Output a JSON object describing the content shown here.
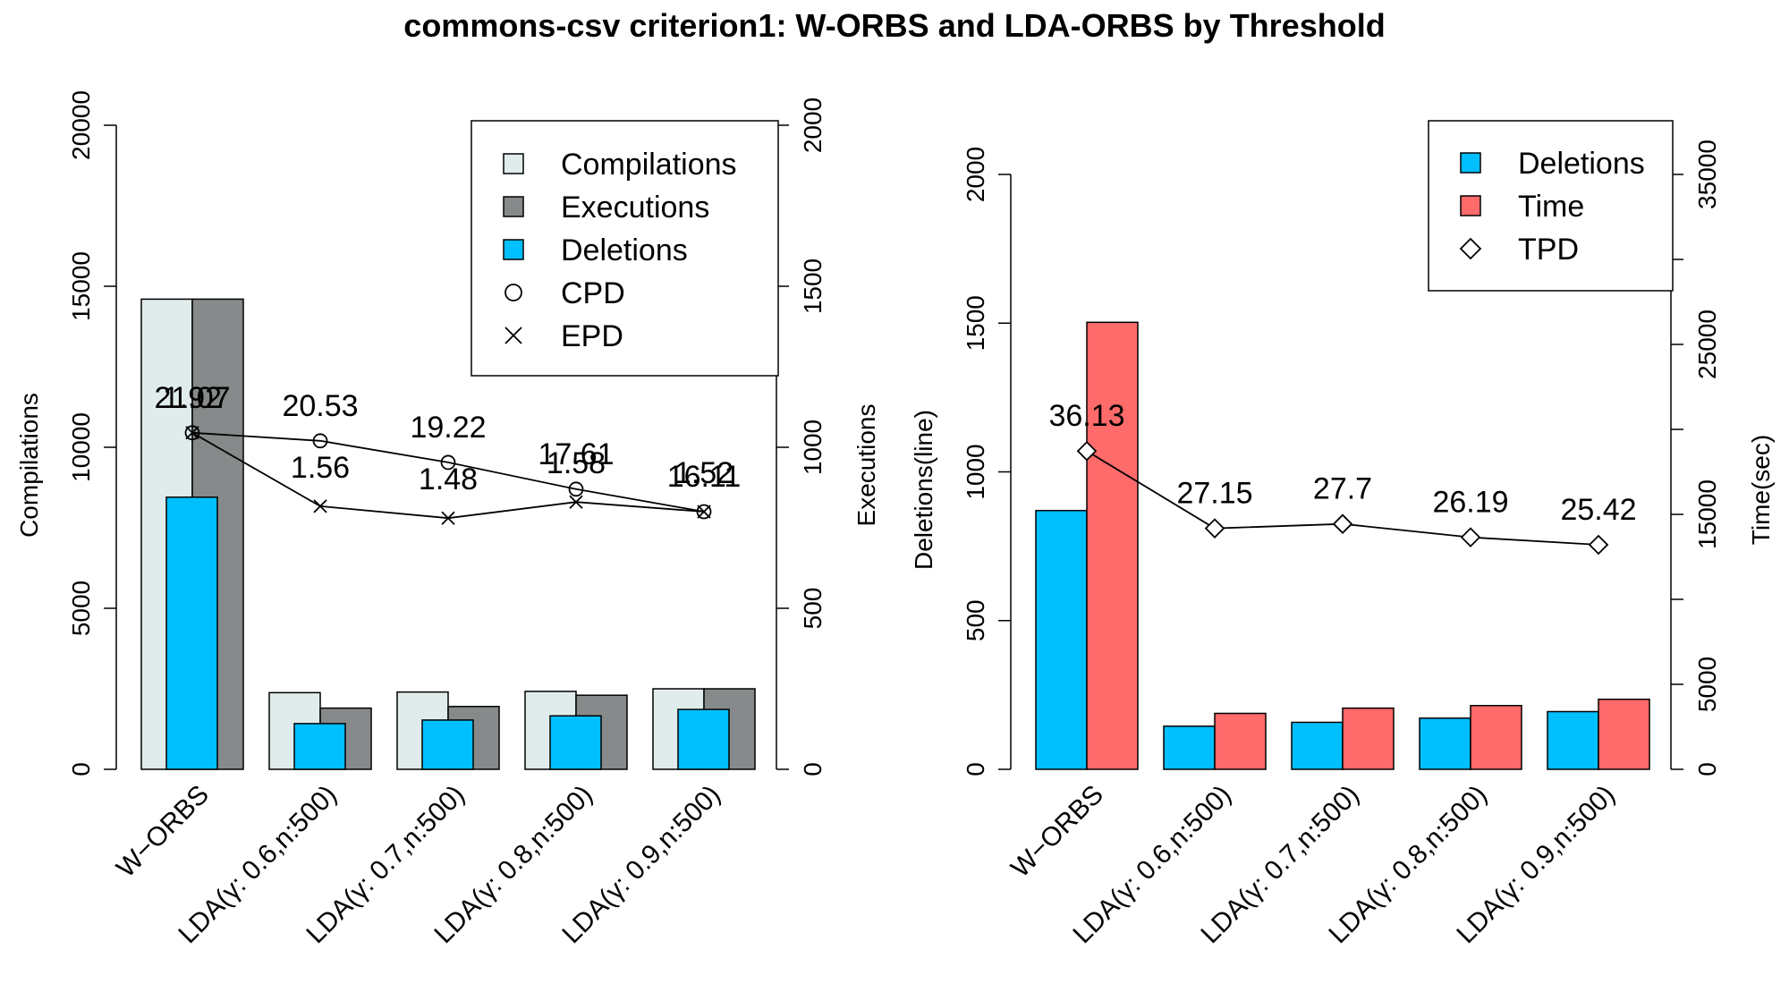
{
  "title": "commons-csv criterion1: W-ORBS and LDA-ORBS by Threshold",
  "colors": {
    "compilations": "#e0ecec",
    "executions": "#878a8a",
    "deletions": "#00bfff",
    "time": "#ff6a6a",
    "axis": "#000000"
  },
  "chart_data": [
    {
      "type": "bar",
      "panel": "left",
      "categories": [
        "W−ORBS",
        "LDA(γ: 0.6,n:500)",
        "LDA(γ: 0.7,n:500)",
        "LDA(γ: 0.8,n:500)",
        "LDA(γ: 0.9,n:500)"
      ],
      "ylabel_left": "Compilations",
      "ylabel_right": "Executions",
      "ylim_left": [
        0,
        20000
      ],
      "ylim_right": [
        0,
        2000
      ],
      "yticks_left": [
        "0",
        "5000",
        "10000",
        "15000",
        "20000"
      ],
      "yticks_right": [
        "0",
        "500",
        "1000",
        "1500",
        "2000"
      ],
      "yticks_left_values": [
        0,
        5000,
        10000,
        15000,
        20000
      ],
      "yticks_right_values": [
        0,
        500,
        1000,
        1500,
        2000
      ],
      "series": [
        {
          "name": "Compilations",
          "axis": "left",
          "values": [
            14600,
            2380,
            2400,
            2420,
            2500
          ]
        },
        {
          "name": "Executions",
          "axis": "right",
          "values": [
            1460,
            190,
            195,
            230,
            250
          ]
        },
        {
          "name": "Deletions",
          "axis": "left",
          "values": [
            8450,
            1420,
            1530,
            1660,
            1860
          ]
        }
      ],
      "lines": [
        {
          "name": "CPD",
          "marker": "circle",
          "axis": "left",
          "values": [
            10450,
            10200,
            9530,
            8700,
            8000
          ],
          "labels": [
            "21.07",
            "20.53",
            "19.22",
            "17.61",
            "16.11"
          ]
        },
        {
          "name": "EPD",
          "marker": "x",
          "axis": "left",
          "values": [
            10450,
            8170,
            7800,
            8300,
            8000
          ],
          "labels": [
            "1.92",
            "1.56",
            "1.48",
            "1.58",
            "1.52"
          ]
        }
      ],
      "legend": {
        "position": "top-right",
        "entries": [
          "Compilations",
          "Executions",
          "Deletions",
          "CPD",
          "EPD"
        ]
      }
    },
    {
      "type": "bar",
      "panel": "right",
      "categories": [
        "W−ORBS",
        "LDA(γ: 0.6,n:500)",
        "LDA(γ: 0.7,n:500)",
        "LDA(γ: 0.8,n:500)",
        "LDA(γ: 0.9,n:500)"
      ],
      "ylabel_left": "Deletions(line)",
      "ylabel_right": "Time(sec)",
      "ylim_left": [
        0,
        2000
      ],
      "ylim_right": [
        0,
        35000
      ],
      "yticks_left": [
        "0",
        "500",
        "1000",
        "1500",
        "2000"
      ],
      "yticks_right": [
        "0",
        "5000",
        "15000",
        "25000",
        "35000"
      ],
      "yticks_left_values": [
        0,
        500,
        1000,
        1500,
        2000
      ],
      "yticks_right_values": [
        0,
        5000,
        15000,
        25000,
        35000
      ],
      "extra_right_ticks": [
        10000,
        20000,
        30000
      ],
      "series": [
        {
          "name": "Deletions",
          "axis": "left",
          "values": [
            870,
            145,
            158,
            172,
            194
          ]
        },
        {
          "name": "Time",
          "axis": "right",
          "values": [
            26300,
            3290,
            3600,
            3750,
            4120
          ]
        }
      ],
      "lines": [
        {
          "name": "TPD",
          "marker": "diamond",
          "axis": "left",
          "values": [
            1070,
            810,
            825,
            780,
            755
          ],
          "labels": [
            "36.13",
            "27.15",
            "27.7",
            "26.19",
            "25.42"
          ]
        }
      ],
      "legend": {
        "position": "top-right",
        "entries": [
          "Deletions",
          "Time",
          "TPD"
        ]
      }
    }
  ]
}
